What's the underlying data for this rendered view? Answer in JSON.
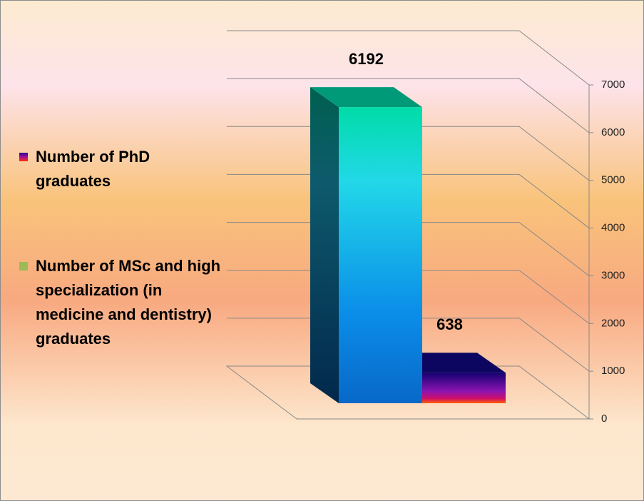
{
  "chart_data": {
    "type": "bar3d",
    "series": [
      {
        "name": "Number of PhD graduates",
        "color": "#7030a0",
        "values": [
          638
        ]
      },
      {
        "name": "Number of MSc and high specialization (in medicine and dentistry) graduates",
        "color": "#9bbb59",
        "values": [
          6192
        ]
      }
    ],
    "ylim": [
      0,
      7000
    ],
    "yticks": [
      0,
      1000,
      2000,
      3000,
      4000,
      5000,
      6000,
      7000
    ],
    "grid": true,
    "legend": "left"
  }
}
